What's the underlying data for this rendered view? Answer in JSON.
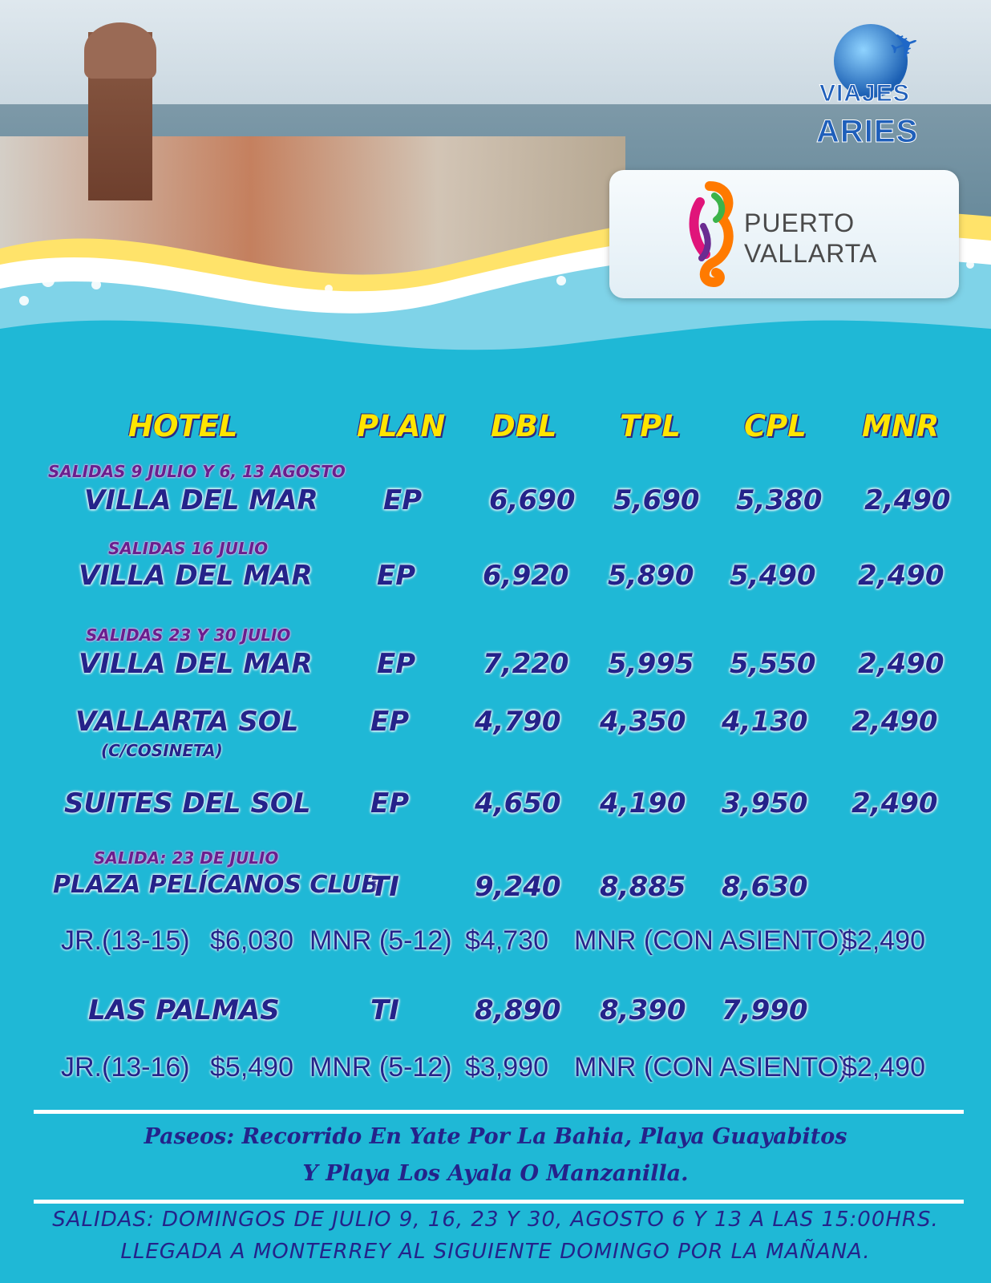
{
  "brand": {
    "line1": "VIAJES",
    "line2": "ARIES"
  },
  "destination": {
    "line1": "PUERTO",
    "line2": "VALLARTA"
  },
  "headers": [
    "HOTEL",
    "PLAN",
    "DBL",
    "TPL",
    "CPL",
    "MNR"
  ],
  "rows": [
    {
      "note": "SALIDAS 9 JULIO Y 6, 13 AGOSTO",
      "hotel": "VILLA DEL MAR",
      "plan": "EP",
      "dbl": "6,690",
      "tpl": "5,690",
      "cpl": "5,380",
      "mnr": "2,490"
    },
    {
      "note": "SALIDAS 16 JULIO",
      "hotel": "VILLA DEL MAR",
      "plan": "EP",
      "dbl": "6,920",
      "tpl": "5,890",
      "cpl": "5,490",
      "mnr": "2,490"
    },
    {
      "note": "SALIDAS 23 Y 30 JULIO",
      "hotel": "VILLA DEL MAR",
      "plan": "EP",
      "dbl": "7,220",
      "tpl": "5,995",
      "cpl": "5,550",
      "mnr": "2,490"
    },
    {
      "hotel": "VALLARTA SOL",
      "sub": "(C/COSINETA)",
      "plan": "EP",
      "dbl": "4,790",
      "tpl": "4,350",
      "cpl": "4,130",
      "mnr": "2,490"
    },
    {
      "hotel": "SUITES DEL SOL",
      "plan": "EP",
      "dbl": "4,650",
      "tpl": "4,190",
      "cpl": "3,950",
      "mnr": "2,490"
    },
    {
      "note": "SALIDA: 23 DE JULIO",
      "hotel": "PLAZA PELÍCANOS CLUB",
      "plan": "TI",
      "dbl": "9,240",
      "tpl": "8,885",
      "cpl": "8,630"
    },
    {
      "hotel": "LAS PALMAS",
      "plan": "TI",
      "dbl": "8,890",
      "tpl": "8,390",
      "cpl": "7,990"
    }
  ],
  "extras": [
    {
      "jr_label": "JR.(13-15)",
      "jr_price": "$6,030",
      "mnr_label": "MNR (5-12)",
      "mnr_price": "$4,730",
      "seat_label": "MNR (CON ASIENTO)",
      "seat_price": "$2,490"
    },
    {
      "jr_label": "JR.(13-16)",
      "jr_price": "$5,490",
      "mnr_label": "MNR (5-12)",
      "mnr_price": "$3,990",
      "seat_label": "MNR (CON ASIENTO)",
      "seat_price": "$2,490"
    }
  ],
  "paseos": {
    "line1": "Paseos: Recorrido En Yate Por La Bahia, Playa Guayabitos",
    "line2": "Y Playa Los Ayala O Manzanilla."
  },
  "salidas": {
    "line1": "SALIDAS: DOMINGOS DE JULIO 9, 16, 23 Y 30, AGOSTO 6 Y 13 A LAS 15:00HRS.",
    "line2": "LLEGADA A MONTERREY AL SIGUIENTE DOMINGO POR LA MAÑANA."
  },
  "icons": {
    "plane": "airplane-icon",
    "globe": "globe-icon",
    "seahorse": "seahorse-logo"
  },
  "colors": {
    "background": "#1fb8d6",
    "header": "#ffe500",
    "text": "#24238a",
    "note": "#6a1e8e"
  }
}
